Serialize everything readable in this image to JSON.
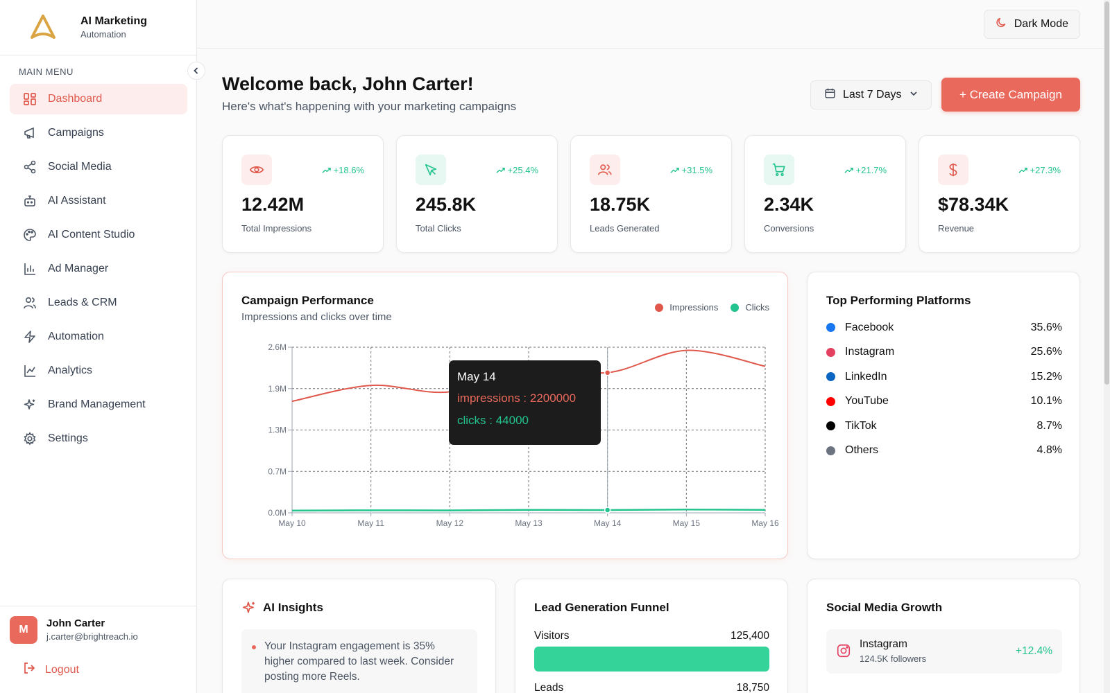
{
  "brand": {
    "title": "AI Marketing",
    "subtitle": "Automation"
  },
  "sidebar": {
    "menu_title": "MAIN MENU",
    "items": [
      {
        "label": "Dashboard",
        "icon": "dashboard-icon",
        "active": true
      },
      {
        "label": "Campaigns",
        "icon": "megaphone-icon"
      },
      {
        "label": "Social Media",
        "icon": "share-icon"
      },
      {
        "label": "AI Assistant",
        "icon": "bot-icon"
      },
      {
        "label": "AI Content Studio",
        "icon": "palette-icon"
      },
      {
        "label": "Ad Manager",
        "icon": "bar-chart-icon"
      },
      {
        "label": "Leads & CRM",
        "icon": "users-icon"
      },
      {
        "label": "Automation",
        "icon": "lightning-icon"
      },
      {
        "label": "Analytics",
        "icon": "line-chart-icon"
      },
      {
        "label": "Brand Management",
        "icon": "sparkles-icon"
      },
      {
        "label": "Settings",
        "icon": "gear-icon"
      }
    ],
    "user": {
      "initial": "M",
      "name": "John Carter",
      "email": "j.carter@brightreach.io"
    },
    "logout_label": "Logout"
  },
  "topbar": {
    "dark_mode_label": "Dark Mode"
  },
  "header": {
    "title": "Welcome back, John Carter!",
    "subtitle": "Here's what's happening with your marketing campaigns",
    "range_label": "Last 7 Days",
    "create_label": "+ Create Campaign"
  },
  "stats": [
    {
      "icon": "eye-icon",
      "change": "+18.6%",
      "value": "12.42M",
      "label": "Total Impressions",
      "tone": "red"
    },
    {
      "icon": "cursor-icon",
      "change": "+25.4%",
      "value": "245.8K",
      "label": "Total Clicks",
      "tone": "green"
    },
    {
      "icon": "users-icon",
      "change": "+31.5%",
      "value": "18.75K",
      "label": "Leads Generated",
      "tone": "red"
    },
    {
      "icon": "cart-icon",
      "change": "+21.7%",
      "value": "2.34K",
      "label": "Conversions",
      "tone": "green"
    },
    {
      "icon": "dollar-icon",
      "change": "+27.3%",
      "value": "$78.34K",
      "label": "Revenue",
      "tone": "red"
    }
  ],
  "performance": {
    "title": "Campaign Performance",
    "subtitle": "Impressions and clicks over time",
    "legend": [
      "Impressions",
      "Clicks"
    ],
    "tooltip": {
      "date": "May 14",
      "impressions": "impressions : 2200000",
      "clicks": "clicks : 44000"
    }
  },
  "chart_data": {
    "type": "line",
    "x": [
      "May 10",
      "May 11",
      "May 12",
      "May 13",
      "May 14",
      "May 15",
      "May 16"
    ],
    "series": [
      {
        "name": "Impressions",
        "color": "#e0584b",
        "values": [
          1750000,
          2000000,
          1900000,
          2300000,
          2200000,
          2550000,
          2300000
        ]
      },
      {
        "name": "Clicks",
        "color": "#22c38e",
        "values": [
          35000,
          40000,
          38000,
          46000,
          44000,
          51000,
          46000
        ]
      }
    ],
    "yticks": [
      "0.0M",
      "0.7M",
      "1.3M",
      "1.9M",
      "2.6M"
    ],
    "ytick_values": [
      0,
      650000,
      1300000,
      1950000,
      2600000
    ],
    "ylim": [
      0,
      2600000
    ],
    "grid": true,
    "legend_position": "top-right",
    "highlight_index": 4
  },
  "platforms": {
    "title": "Top Performing Platforms",
    "items": [
      {
        "name": "Facebook",
        "pct": "35.6%",
        "color": "#1877f2"
      },
      {
        "name": "Instagram",
        "pct": "25.6%",
        "color": "#e4405f"
      },
      {
        "name": "LinkedIn",
        "pct": "15.2%",
        "color": "#0a66c2"
      },
      {
        "name": "YouTube",
        "pct": "10.1%",
        "color": "#ff0000"
      },
      {
        "name": "TikTok",
        "pct": "8.7%",
        "color": "#000000"
      },
      {
        "name": "Others",
        "pct": "4.8%",
        "color": "#6b7280"
      }
    ]
  },
  "insights": {
    "title": "AI Insights",
    "items": [
      "Your Instagram engagement is 35% higher compared to last week. Consider posting more Reels."
    ]
  },
  "funnel": {
    "title": "Lead Generation Funnel",
    "rows": [
      {
        "label": "Visitors",
        "value": "125,400",
        "fraction": 1.0
      },
      {
        "label": "Leads",
        "value": "18,750"
      }
    ]
  },
  "social": {
    "title": "Social Media Growth",
    "items": [
      {
        "name": "Instagram",
        "followers": "124.5K followers",
        "growth": "+12.4%",
        "icon": "instagram-icon"
      }
    ]
  }
}
